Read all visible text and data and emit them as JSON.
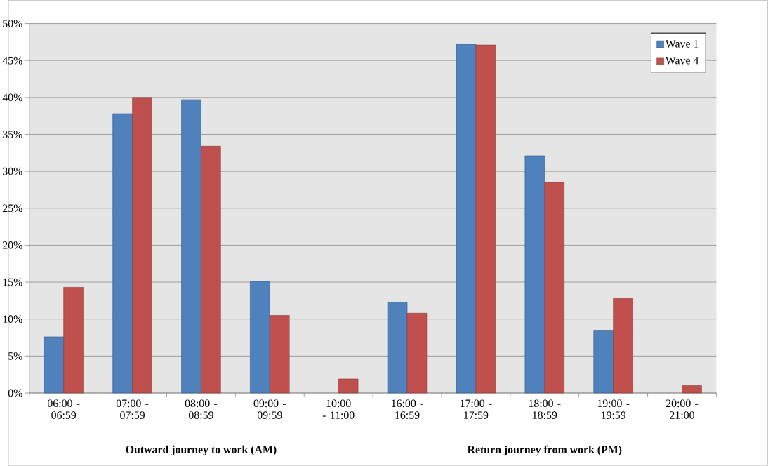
{
  "chart_data": {
    "type": "bar",
    "categories": [
      "06:00 - 06:59",
      "07:00 - 07:59",
      "08:00 - 08:59",
      "09:00 - 09:59",
      "10:00 - 11:00",
      "16:00 - 16:59",
      "17:00 - 17:59",
      "18:00 - 18:59",
      "19:00 - 19:59",
      "20:00 - 21:00"
    ],
    "series": [
      {
        "name": "Wave 1",
        "color": "#4f81bd",
        "values": [
          7.6,
          37.8,
          39.7,
          15.1,
          null,
          12.3,
          47.2,
          32.1,
          8.5,
          null
        ]
      },
      {
        "name": "Wave 4",
        "color": "#c0504d",
        "values": [
          14.3,
          40.0,
          33.4,
          10.5,
          1.9,
          10.8,
          47.1,
          28.5,
          12.8,
          1.0
        ]
      }
    ],
    "ylim": [
      0,
      50
    ],
    "yticks": [
      {
        "value": 0,
        "label": "0%"
      },
      {
        "value": 5,
        "label": "5%"
      },
      {
        "value": 10,
        "label": "10%"
      },
      {
        "value": 15,
        "label": "15%"
      },
      {
        "value": 20,
        "label": "20%"
      },
      {
        "value": 25,
        "label": "25%"
      },
      {
        "value": 30,
        "label": "30%"
      },
      {
        "value": 35,
        "label": "35%"
      },
      {
        "value": 40,
        "label": "40%"
      },
      {
        "value": 45,
        "label": "45%"
      },
      {
        "value": 50,
        "label": "50%"
      }
    ],
    "grid": "y",
    "legend": "top right",
    "annotations": [
      "Outward journey to work (AM)",
      "Return journey from work (PM)"
    ]
  }
}
